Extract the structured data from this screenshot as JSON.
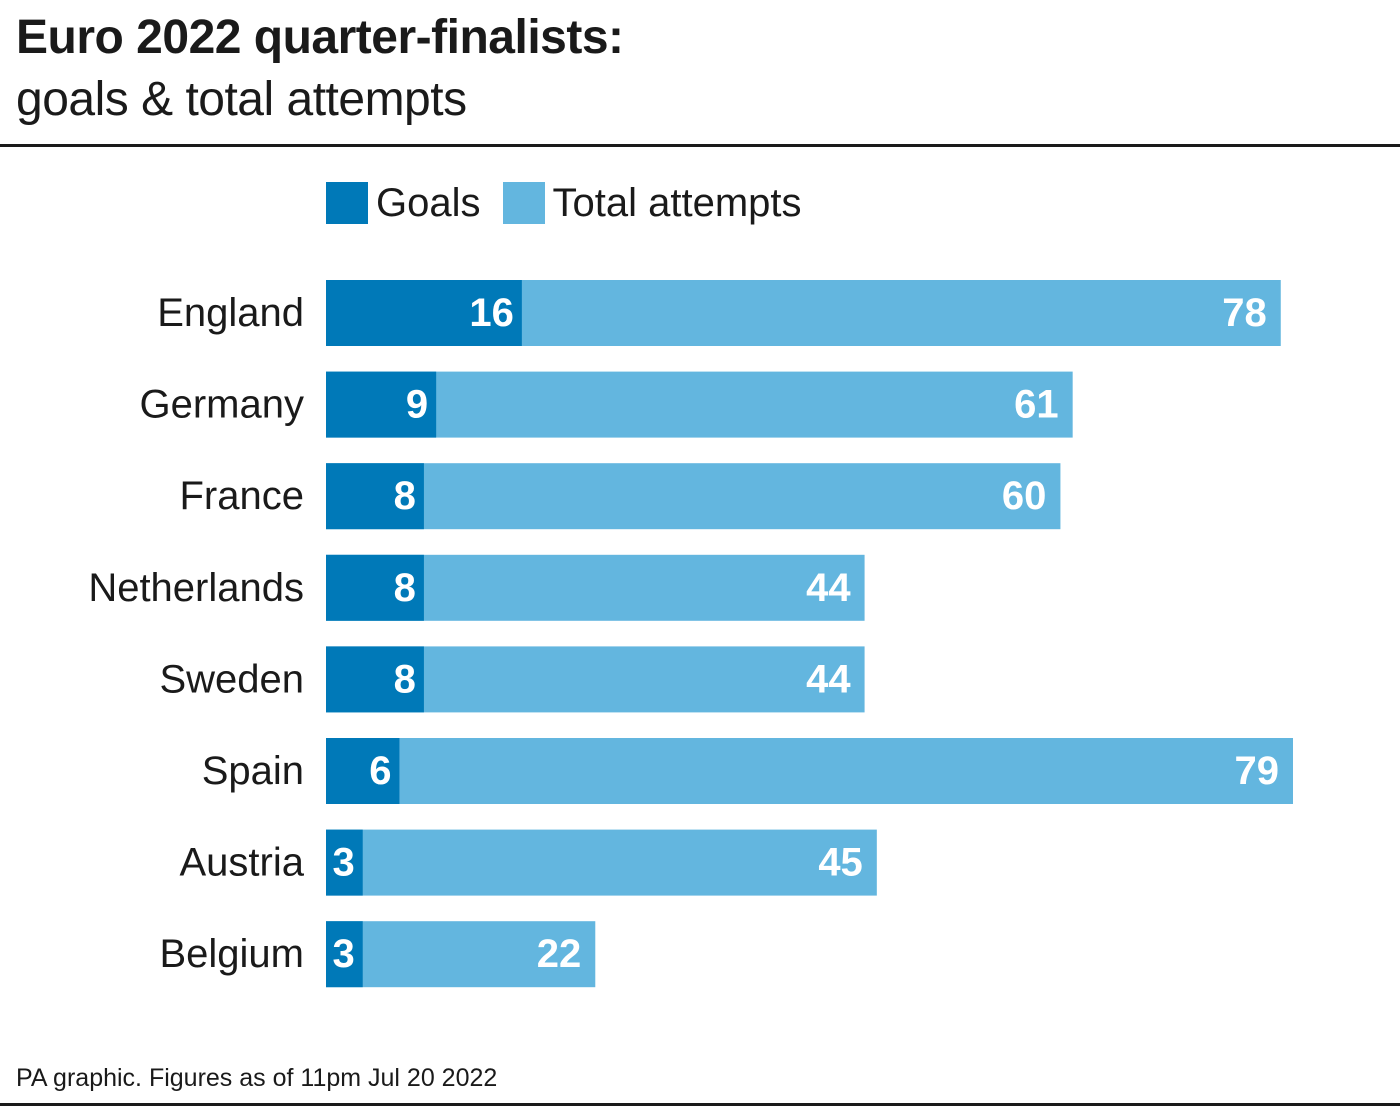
{
  "header": {
    "title": "Euro 2022 quarter-finalists:",
    "subtitle": "goals & total attempts"
  },
  "legend": {
    "goals_label": "Goals",
    "attempts_label": "Total attempts"
  },
  "colors": {
    "goals": "#0079b8",
    "attempts": "#63b6df",
    "value_text": "#ffffff",
    "text": "#1a1a1a"
  },
  "footer": {
    "source": "PA graphic. Figures as of 11pm Jul 20 2022"
  },
  "chart_data": {
    "type": "bar",
    "orientation": "horizontal",
    "title": "Euro 2022 quarter-finalists:",
    "subtitle": "goals & total attempts",
    "categories": [
      "England",
      "Germany",
      "France",
      "Netherlands",
      "Sweden",
      "Spain",
      "Austria",
      "Belgium"
    ],
    "series": [
      {
        "name": "Goals",
        "values": [
          16,
          9,
          8,
          8,
          8,
          6,
          3,
          3
        ]
      },
      {
        "name": "Total attempts",
        "values": [
          78,
          61,
          60,
          44,
          44,
          79,
          45,
          22
        ]
      }
    ],
    "xlim": [
      0,
      79
    ],
    "grid": false,
    "legend_position": "top"
  }
}
